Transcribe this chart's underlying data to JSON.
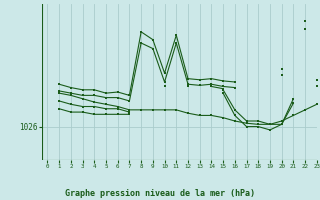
{
  "title": "Graphe pression niveau de la mer (hPa)",
  "background_color": "#cce8e8",
  "grid_color": "#aacccc",
  "line_color": "#1a5c1a",
  "ylabel_value": 1026,
  "ylim": [
    1023,
    1037
  ],
  "xlim": [
    -0.5,
    23
  ],
  "lines": [
    [
      null,
      1029.8,
      1029.5,
      1029.3,
      1029.3,
      1029.0,
      1029.1,
      1028.8,
      1034.5,
      1033.8,
      1030.8,
      1034.2,
      1030.3,
      1030.2,
      1030.3,
      1030.1,
      1030.0,
      null,
      null,
      null,
      1031.2,
      null,
      1035.5,
      null
    ],
    [
      null,
      1029.2,
      1029.0,
      1028.8,
      1028.8,
      1028.6,
      1028.6,
      1028.3,
      1033.5,
      1033.0,
      1030.0,
      1033.5,
      1029.8,
      1029.7,
      1029.8,
      1029.6,
      1029.5,
      null,
      null,
      null,
      1030.6,
      null,
      1034.8,
      null
    ],
    [
      null,
      1028.3,
      1028.0,
      1027.8,
      1027.8,
      1027.6,
      1027.6,
      1027.3,
      null,
      null,
      null,
      null,
      null,
      null,
      null,
      null,
      null,
      null,
      null,
      null,
      null,
      null,
      null,
      null
    ],
    [
      null,
      1027.6,
      1027.3,
      1027.3,
      1027.1,
      1027.1,
      1027.1,
      1027.1,
      null,
      null,
      1029.6,
      null,
      1029.6,
      null,
      1029.6,
      1029.4,
      null,
      null,
      null,
      null,
      null,
      null,
      null,
      null
    ],
    [
      null,
      null,
      null,
      null,
      null,
      null,
      null,
      null,
      null,
      null,
      null,
      null,
      null,
      null,
      null,
      1029.3,
      1027.5,
      1026.5,
      1026.5,
      1026.2,
      1026.2,
      1028.5,
      null,
      1030.2
    ],
    [
      null,
      null,
      null,
      null,
      null,
      null,
      null,
      null,
      null,
      null,
      null,
      null,
      null,
      null,
      null,
      1029.0,
      1027.0,
      1026.0,
      1026.0,
      1025.7,
      1026.2,
      1028.1,
      null,
      1029.6
    ],
    [
      null,
      1029.0,
      1028.8,
      1028.5,
      1028.2,
      1028.0,
      1027.8,
      1027.5,
      1027.5,
      1027.5,
      1027.5,
      1027.5,
      1027.2,
      1027.0,
      1027.0,
      1026.8,
      1026.5,
      1026.3,
      1026.2,
      1026.2,
      1026.5,
      1027.0,
      1027.5,
      1028.0
    ]
  ]
}
